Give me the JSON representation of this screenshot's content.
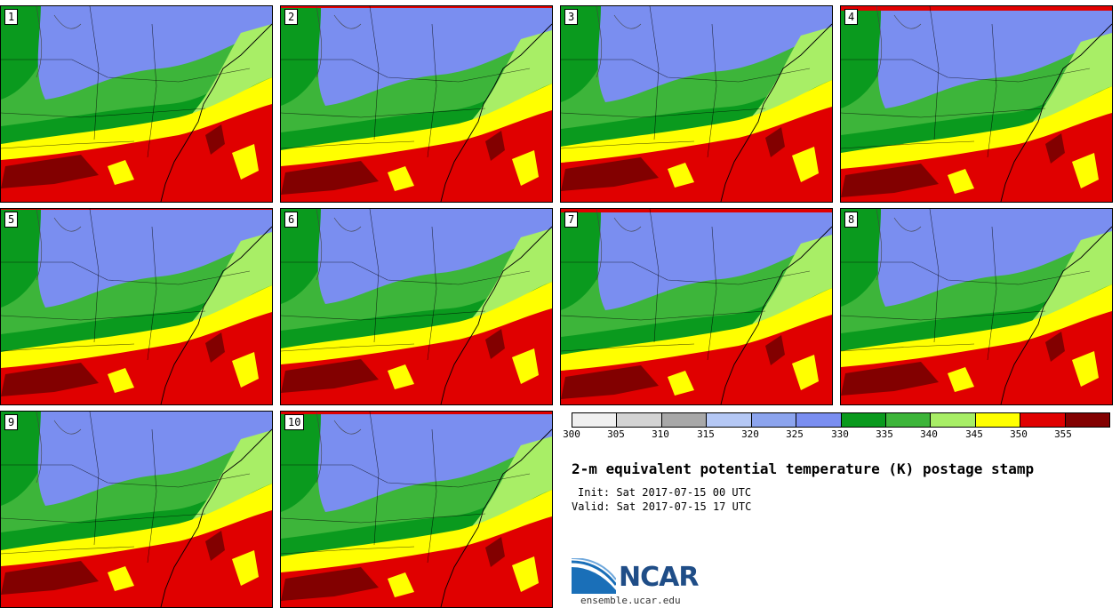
{
  "title": "2-m equivalent potential temperature (K) postage stamp",
  "init_text": "Init: Sat 2017-07-15 00 UTC",
  "valid_text": "Valid: Sat 2017-07-15 17 UTC",
  "logo_text": "NCAR",
  "website": "ensemble.ucar.edu",
  "panels": [
    {
      "label": "1"
    },
    {
      "label": "2"
    },
    {
      "label": "3"
    },
    {
      "label": "4"
    },
    {
      "label": "5"
    },
    {
      "label": "6"
    },
    {
      "label": "7"
    },
    {
      "label": "8"
    },
    {
      "label": "9"
    },
    {
      "label": "10"
    }
  ],
  "colorbar": {
    "ticks": [
      "300",
      "305",
      "310",
      "315",
      "320",
      "325",
      "330",
      "335",
      "340",
      "345",
      "350",
      "355"
    ],
    "colors": [
      "#f0f0f0",
      "#d3d3d3",
      "#a8a8a8",
      "#b5c8f5",
      "#8ca4ee",
      "#7a8ef0",
      "#0a9a1e",
      "#3db53a",
      "#a8ee66",
      "#ffff00",
      "#e00000",
      "#820000"
    ]
  }
}
